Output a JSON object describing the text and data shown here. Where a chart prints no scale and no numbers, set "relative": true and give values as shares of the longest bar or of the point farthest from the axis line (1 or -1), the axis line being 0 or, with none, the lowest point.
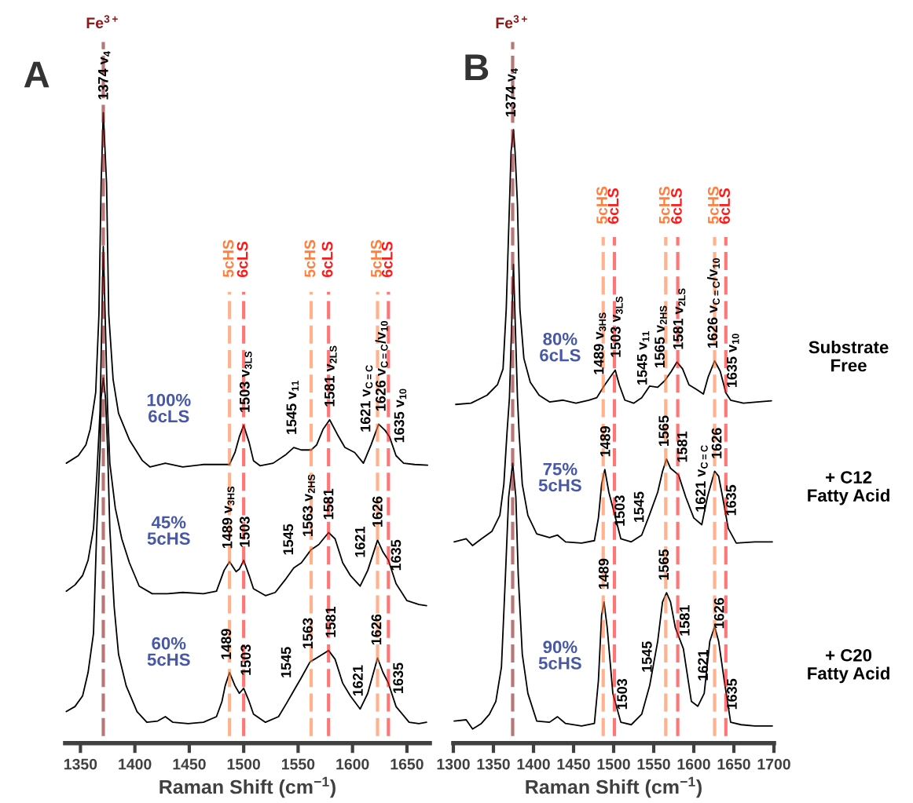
{
  "chart_data": [
    {
      "type": "line",
      "title": "A",
      "xlabel": "Raman Shift (cm$^{−1}$)",
      "relative": true,
      "xlim": [
        1336,
        1671
      ],
      "xticks": [
        1350,
        1400,
        1450,
        1500,
        1550,
        1600,
        1650
      ],
      "series": [
        {
          "name": "100%\n6cLS",
          "color": "#000000",
          "x": [
            1337,
            1348,
            1355,
            1359,
            1364,
            1367,
            1369,
            1371,
            1374,
            1376,
            1380,
            1385,
            1395,
            1407,
            1414,
            1428,
            1444,
            1463,
            1487,
            1492,
            1496,
            1500,
            1505,
            1509,
            1515,
            1527,
            1539,
            1546,
            1553,
            1562,
            1567,
            1573,
            1579,
            1586,
            1593,
            1602,
            1610,
            1617,
            1624,
            1630,
            1634,
            1640,
            1647,
            1657,
            1669
          ],
          "values": [
            0.444,
            0.456,
            0.473,
            0.498,
            0.556,
            0.681,
            0.888,
            1.0,
            0.888,
            0.681,
            0.577,
            0.523,
            0.481,
            0.448,
            0.438,
            0.444,
            0.438,
            0.442,
            0.442,
            0.461,
            0.486,
            0.504,
            0.477,
            0.448,
            0.44,
            0.444,
            0.458,
            0.469,
            0.465,
            0.465,
            0.473,
            0.498,
            0.513,
            0.49,
            0.469,
            0.461,
            0.444,
            0.473,
            0.506,
            0.496,
            0.486,
            0.456,
            0.444,
            0.442,
            0.441
          ]
        },
        {
          "name": "45%\n5cHS",
          "color": "#000000",
          "x": [
            1337,
            1345,
            1352,
            1357,
            1362,
            1365,
            1368,
            1371,
            1375,
            1377,
            1382,
            1388,
            1395,
            1404,
            1416,
            1430,
            1444,
            1463,
            1475,
            1482,
            1487,
            1493,
            1496,
            1500,
            1505,
            1509,
            1520,
            1529,
            1539,
            1546,
            1553,
            1562,
            1569,
            1578,
            1584,
            1591,
            1598,
            1607,
            1614,
            1623,
            1628,
            1633,
            1640,
            1650,
            1661,
            1668
          ],
          "values": [
            0.241,
            0.251,
            0.266,
            0.29,
            0.34,
            0.423,
            0.527,
            0.788,
            0.527,
            0.444,
            0.373,
            0.324,
            0.286,
            0.249,
            0.237,
            0.237,
            0.239,
            0.237,
            0.241,
            0.274,
            0.288,
            0.272,
            0.276,
            0.29,
            0.266,
            0.245,
            0.234,
            0.239,
            0.261,
            0.278,
            0.286,
            0.307,
            0.315,
            0.334,
            0.324,
            0.286,
            0.266,
            0.249,
            0.274,
            0.322,
            0.303,
            0.29,
            0.253,
            0.226,
            0.22,
            0.218
          ]
        },
        {
          "name": "60%\n5cHS",
          "color": "#000000",
          "x": [
            1337,
            1345,
            1352,
            1357,
            1362,
            1365,
            1368,
            1369,
            1371,
            1373,
            1375,
            1377,
            1381,
            1385,
            1392,
            1402,
            1411,
            1421,
            1428,
            1435,
            1449,
            1463,
            1475,
            1480,
            1483,
            1487,
            1492,
            1496,
            1500,
            1505,
            1509,
            1520,
            1532,
            1539,
            1546,
            1553,
            1561,
            1567,
            1578,
            1584,
            1591,
            1598,
            1607,
            1614,
            1623,
            1628,
            1633,
            1640,
            1652,
            1661,
            1668
          ],
          "values": [
            0.05,
            0.058,
            0.075,
            0.112,
            0.174,
            0.34,
            0.465,
            0.548,
            0.579,
            0.548,
            0.465,
            0.34,
            0.216,
            0.141,
            0.091,
            0.05,
            0.033,
            0.035,
            0.042,
            0.033,
            0.031,
            0.033,
            0.042,
            0.066,
            0.091,
            0.112,
            0.091,
            0.079,
            0.087,
            0.066,
            0.046,
            0.033,
            0.042,
            0.062,
            0.083,
            0.104,
            0.129,
            0.135,
            0.147,
            0.133,
            0.095,
            0.075,
            0.054,
            0.079,
            0.135,
            0.112,
            0.095,
            0.058,
            0.033,
            0.031,
            0.033
          ]
        }
      ],
      "ref_lines": [
        {
          "axis": "x",
          "value": 1371,
          "label": "Fe$^{3+}$",
          "color": "#8b1a1a",
          "line_style": "dashed"
        },
        {
          "axis": "x",
          "value": 1487,
          "label": "5cHS",
          "color": "#ff7f3f",
          "line_style": "dashed"
        },
        {
          "axis": "x",
          "value": 1500,
          "label": "6cLS",
          "color": "#ff1a1a",
          "line_style": "dashed"
        },
        {
          "axis": "x",
          "value": 1562,
          "label": "5cHS",
          "color": "#ff7f3f",
          "line_style": "dashed"
        },
        {
          "axis": "x",
          "value": 1578,
          "label": "6cLS",
          "color": "#ff1a1a",
          "line_style": "dashed"
        },
        {
          "axis": "x",
          "value": 1623,
          "label": "5cHS",
          "color": "#ff7f3f",
          "line_style": "dashed"
        },
        {
          "axis": "x",
          "value": 1633,
          "label": "6cLS",
          "color": "#ff1a1a",
          "line_style": "dashed"
        }
      ],
      "annotations": [
        {
          "text": "1374 v$_{4}$",
          "x": 1372,
          "y": 1.008
        },
        {
          "text": "1503 v$_{3LS}$",
          "x": 1502,
          "y": 0.521
        },
        {
          "text": "1545 v$_{11}$",
          "x": 1545,
          "y": 0.467
        },
        {
          "text": "1581 v$_{2LS}$",
          "x": 1580,
          "y": 0.523
        },
        {
          "text": "1621 v$_{C=C}$",
          "x": 1613,
          "y": 0.456
        },
        {
          "text": "1626 v$_{C=C}$/v$_{10}$",
          "x": 1627,
          "y": 0.501
        },
        {
          "text": "1635 v$_{10}$",
          "x": 1644,
          "y": 0.449
        },
        {
          "text": "1489 v$_{3HS}$",
          "x": 1486,
          "y": 0.299
        },
        {
          "text": "1503",
          "x": 1502,
          "y": 0.301
        },
        {
          "text": "1545",
          "x": 1542,
          "y": 0.268
        },
        {
          "text": "1563 v$_{2HS}$",
          "x": 1560,
          "y": 0.32
        },
        {
          "text": "1581",
          "x": 1579,
          "y": 0.344
        },
        {
          "text": "1621",
          "x": 1608,
          "y": 0.253
        },
        {
          "text": "1626",
          "x": 1624,
          "y": 0.34
        },
        {
          "text": "1635",
          "x": 1641,
          "y": 0.25
        },
        {
          "text": "1489",
          "x": 1485,
          "y": 0.12
        },
        {
          "text": "1503",
          "x": 1503,
          "y": 0.098
        },
        {
          "text": "1545",
          "x": 1540,
          "y": 0.065
        },
        {
          "text": "1563",
          "x": 1560,
          "y": 0.145
        },
        {
          "text": "1581",
          "x": 1581,
          "y": 0.156
        },
        {
          "text": "1621",
          "x": 1606,
          "y": 0.056
        },
        {
          "text": "1626",
          "x": 1623,
          "y": 0.131
        },
        {
          "text": "1635",
          "x": 1643,
          "y": 0.052
        }
      ]
    },
    {
      "type": "line",
      "title": "B",
      "xlabel": "Raman Shift (cm$^{−1}$)",
      "relative": true,
      "xlim": [
        1300,
        1700
      ],
      "xticks": [
        1300,
        1350,
        1400,
        1450,
        1500,
        1550,
        1600,
        1650,
        1700
      ],
      "series": [
        {
          "name": "80%\n6cLS",
          "color": "#000000",
          "x": [
            1303,
            1322,
            1342,
            1355,
            1362,
            1366,
            1370,
            1372,
            1375,
            1377,
            1380,
            1383,
            1388,
            1396,
            1407,
            1420,
            1437,
            1453,
            1469,
            1479,
            1487,
            1496,
            1502,
            1507,
            1514,
            1525,
            1535,
            1545,
            1555,
            1564,
            1572,
            1579,
            1586,
            1594,
            1604,
            1612,
            1618,
            1626,
            1633,
            1640,
            1646,
            1662,
            1679,
            1697
          ],
          "values": [
            0.552,
            0.554,
            0.567,
            0.584,
            0.61,
            0.708,
            0.878,
            0.964,
            1.0,
            0.964,
            0.878,
            0.708,
            0.627,
            0.588,
            0.567,
            0.556,
            0.559,
            0.554,
            0.559,
            0.563,
            0.58,
            0.597,
            0.608,
            0.584,
            0.559,
            0.554,
            0.563,
            0.582,
            0.58,
            0.591,
            0.606,
            0.621,
            0.61,
            0.584,
            0.576,
            0.569,
            0.597,
            0.623,
            0.606,
            0.571,
            0.559,
            0.554,
            0.556,
            0.558
          ]
        },
        {
          "name": "75%\n5cHS",
          "color": "#000000",
          "x": [
            1301,
            1316,
            1324,
            1335,
            1348,
            1358,
            1363,
            1367,
            1370,
            1375,
            1380,
            1382,
            1386,
            1393,
            1404,
            1420,
            1430,
            1440,
            1460,
            1476,
            1481,
            1485,
            1489,
            1494,
            1499,
            1509,
            1522,
            1535,
            1545,
            1555,
            1561,
            1566,
            1571,
            1581,
            1590,
            1600,
            1610,
            1617,
            1626,
            1631,
            1636,
            1643,
            1653,
            1676,
            1698
          ],
          "values": [
            0.328,
            0.333,
            0.322,
            0.333,
            0.345,
            0.371,
            0.422,
            0.507,
            0.563,
            0.78,
            0.563,
            0.507,
            0.422,
            0.371,
            0.341,
            0.335,
            0.339,
            0.328,
            0.326,
            0.33,
            0.367,
            0.422,
            0.446,
            0.409,
            0.384,
            0.333,
            0.328,
            0.339,
            0.373,
            0.409,
            0.443,
            0.463,
            0.448,
            0.437,
            0.401,
            0.367,
            0.356,
            0.401,
            0.443,
            0.435,
            0.401,
            0.35,
            0.326,
            0.328,
            0.328
          ]
        },
        {
          "name": "90%\n5cHS",
          "color": "#000000",
          "x": [
            1301,
            1316,
            1324,
            1335,
            1345,
            1353,
            1360,
            1365,
            1369,
            1374,
            1378,
            1381,
            1386,
            1393,
            1404,
            1420,
            1430,
            1440,
            1460,
            1476,
            1481,
            1485,
            1488,
            1492,
            1499,
            1509,
            1522,
            1535,
            1545,
            1555,
            1561,
            1566,
            1571,
            1577,
            1587,
            1597,
            1605,
            1613,
            1620,
            1626,
            1631,
            1638,
            1646,
            1659,
            1676,
            1698
          ],
          "values": [
            0.036,
            0.038,
            0.023,
            0.032,
            0.047,
            0.068,
            0.124,
            0.273,
            0.401,
            0.456,
            0.401,
            0.273,
            0.145,
            0.081,
            0.036,
            0.034,
            0.043,
            0.032,
            0.028,
            0.032,
            0.102,
            0.209,
            0.23,
            0.188,
            0.081,
            0.034,
            0.03,
            0.047,
            0.094,
            0.166,
            0.23,
            0.245,
            0.23,
            0.188,
            0.154,
            0.068,
            0.06,
            0.081,
            0.166,
            0.19,
            0.166,
            0.102,
            0.034,
            0.03,
            0.028,
            0.028
          ]
        }
      ],
      "ref_lines": [
        {
          "axis": "x",
          "value": 1374,
          "label": "Fe$^{3+}$",
          "color": "#8b1a1a",
          "line_style": "dashed"
        },
        {
          "axis": "x",
          "value": 1487,
          "label": "5cHS",
          "color": "#ff7f3f",
          "line_style": "dashed"
        },
        {
          "axis": "x",
          "value": 1501,
          "label": "6cLS",
          "color": "#ff1a1a",
          "line_style": "dashed"
        },
        {
          "axis": "x",
          "value": 1565,
          "label": "5cHS",
          "color": "#ff7f3f",
          "line_style": "dashed"
        },
        {
          "axis": "x",
          "value": 1580,
          "label": "6cLS",
          "color": "#ff1a1a",
          "line_style": "dashed"
        },
        {
          "axis": "x",
          "value": 1626,
          "label": "5cHS",
          "color": "#ff7f3f",
          "line_style": "dashed"
        },
        {
          "axis": "x",
          "value": 1640,
          "label": "6cLS",
          "color": "#ff1a1a",
          "line_style": "dashed"
        }
      ],
      "annotations": [
        "Substrate\nFree",
        "+ C12\nFatty Acid",
        "+ C20\nFatty Acid",
        {
          "text": "1374 v$_{4}$",
          "x": 1373,
          "y": 1.009
        },
        {
          "text": "1489 v$_{3HS}$",
          "x": 1483,
          "y": 0.586
        },
        {
          "text": "1503 v$_{3LS}$",
          "x": 1504,
          "y": 0.623
        },
        {
          "text": "1545 v$_{11}$",
          "x": 1537,
          "y": 0.567
        },
        {
          "text": "1565 v$_{2HS}$",
          "x": 1559,
          "y": 0.585
        },
        {
          "text": "1581 v$_{2LS}$",
          "x": 1582,
          "y": 0.635
        },
        {
          "text": "1626 v$_{C=C}$/v$_{10}$",
          "x": 1625,
          "y": 0.635
        },
        {
          "text": "1635 v$_{10}$",
          "x": 1649,
          "y": 0.558
        },
        {
          "text": "1489",
          "x": 1491,
          "y": 0.458
        },
        {
          "text": "1503",
          "x": 1509,
          "y": 0.333
        },
        {
          "text": "1545",
          "x": 1533,
          "y": 0.337
        },
        {
          "text": "1565",
          "x": 1564,
          "y": 0.471
        },
        {
          "text": "1581",
          "x": 1587,
          "y": 0.413
        },
        {
          "text": "1621 v$_{C=C}$",
          "x": 1610,
          "y": 0.356
        },
        {
          "text": "1626",
          "x": 1630,
          "y": 0.463
        },
        {
          "text": "1635",
          "x": 1648,
          "y": 0.338
        },
        {
          "text": "1489",
          "x": 1489,
          "y": 0.243
        },
        {
          "text": "1503",
          "x": 1512,
          "y": 0.033
        },
        {
          "text": "1545",
          "x": 1543,
          "y": 0.115
        },
        {
          "text": "1565",
          "x": 1564,
          "y": 0.256
        },
        {
          "text": "1581",
          "x": 1590,
          "y": 0.128
        },
        {
          "text": "1621",
          "x": 1613,
          "y": 0.081
        },
        {
          "text": "1626",
          "x": 1633,
          "y": 0.148
        },
        {
          "text": "1635",
          "x": 1649,
          "y": 0.033
        }
      ]
    }
  ]
}
